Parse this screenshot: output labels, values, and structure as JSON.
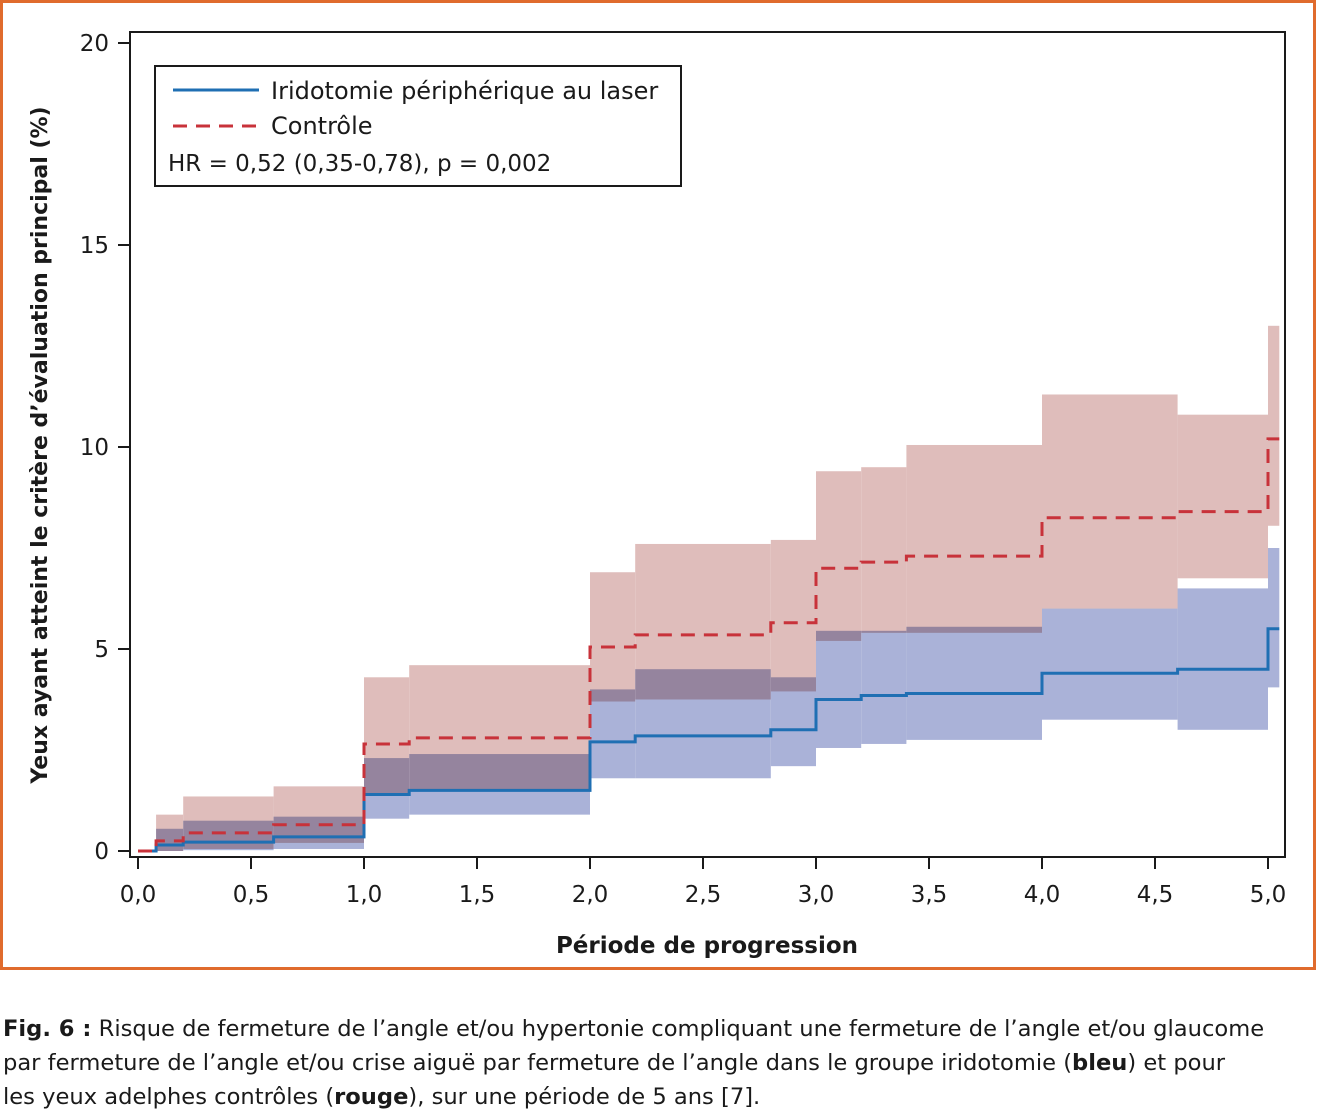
{
  "chart_data": {
    "type": "line",
    "step": true,
    "xlabel": "Période de progression",
    "ylabel": "Yeux ayant atteint le critère d’évaluation principal (%)",
    "xlim": [
      0,
      5.05
    ],
    "ylim": [
      0,
      20
    ],
    "x_ticks": [
      "0,0",
      "0,5",
      "1,0",
      "1,5",
      "2,0",
      "2,5",
      "3,0",
      "3,5",
      "4,0",
      "4,5",
      "5,0"
    ],
    "x_tick_values": [
      0,
      0.5,
      1,
      1.5,
      2,
      2.5,
      3,
      3.5,
      4,
      4.5,
      5
    ],
    "y_ticks": [
      "0",
      "5",
      "10",
      "15",
      "20"
    ],
    "y_tick_values": [
      0,
      5,
      10,
      15,
      20
    ],
    "grid": false,
    "legend_position": "top-left",
    "legend": {
      "series": [
        "Iridotomie périphérique au laser",
        "Contrôle"
      ],
      "annotation": "HR = 0,52 (0,35-0,78), p = 0,002"
    },
    "series": [
      {
        "name": "Iridotomie périphérique au laser",
        "color": "#1f6fb3",
        "line_style": "solid",
        "band_color": "#aab2d8",
        "steps": [
          {
            "x": 0.0,
            "y": 0.0,
            "lo": 0.0,
            "hi": 0.0
          },
          {
            "x": 0.08,
            "y": 0.15,
            "lo": 0.0,
            "hi": 0.55
          },
          {
            "x": 0.2,
            "y": 0.22,
            "lo": 0.02,
            "hi": 0.75
          },
          {
            "x": 0.6,
            "y": 0.35,
            "lo": 0.05,
            "hi": 0.85
          },
          {
            "x": 1.0,
            "y": 1.4,
            "lo": 0.8,
            "hi": 2.3
          },
          {
            "x": 1.2,
            "y": 1.5,
            "lo": 0.9,
            "hi": 2.4
          },
          {
            "x": 2.0,
            "y": 2.7,
            "lo": 1.8,
            "hi": 4.0
          },
          {
            "x": 2.2,
            "y": 2.85,
            "lo": 1.8,
            "hi": 4.5
          },
          {
            "x": 2.8,
            "y": 3.0,
            "lo": 2.1,
            "hi": 4.3
          },
          {
            "x": 3.0,
            "y": 3.75,
            "lo": 2.55,
            "hi": 5.45
          },
          {
            "x": 3.2,
            "y": 3.85,
            "lo": 2.65,
            "hi": 5.45
          },
          {
            "x": 3.4,
            "y": 3.9,
            "lo": 2.75,
            "hi": 5.55
          },
          {
            "x": 4.0,
            "y": 4.4,
            "lo": 3.25,
            "hi": 6.0
          },
          {
            "x": 4.6,
            "y": 4.5,
            "lo": 3.0,
            "hi": 6.5
          },
          {
            "x": 5.0,
            "y": 5.5,
            "lo": 4.05,
            "hi": 7.5
          }
        ]
      },
      {
        "name": "Contrôle",
        "color": "#c8323a",
        "line_style": "dashed",
        "band_color": "#dfbdbb",
        "steps": [
          {
            "x": 0.0,
            "y": 0.0,
            "lo": 0.0,
            "hi": 0.0
          },
          {
            "x": 0.08,
            "y": 0.25,
            "lo": 0.0,
            "hi": 0.9
          },
          {
            "x": 0.2,
            "y": 0.45,
            "lo": 0.05,
            "hi": 1.35
          },
          {
            "x": 0.6,
            "y": 0.65,
            "lo": 0.2,
            "hi": 1.6
          },
          {
            "x": 1.0,
            "y": 2.65,
            "lo": 1.4,
            "hi": 4.3
          },
          {
            "x": 1.2,
            "y": 2.8,
            "lo": 1.5,
            "hi": 4.6
          },
          {
            "x": 2.0,
            "y": 5.05,
            "lo": 3.7,
            "hi": 6.9
          },
          {
            "x": 2.2,
            "y": 5.35,
            "lo": 3.75,
            "hi": 7.6
          },
          {
            "x": 2.8,
            "y": 5.65,
            "lo": 3.95,
            "hi": 7.7
          },
          {
            "x": 3.0,
            "y": 7.0,
            "lo": 5.2,
            "hi": 9.4
          },
          {
            "x": 3.2,
            "y": 7.15,
            "lo": 5.4,
            "hi": 9.5
          },
          {
            "x": 3.4,
            "y": 7.3,
            "lo": 5.4,
            "hi": 10.05
          },
          {
            "x": 4.0,
            "y": 8.25,
            "lo": 6.0,
            "hi": 11.3
          },
          {
            "x": 4.6,
            "y": 8.4,
            "lo": 6.75,
            "hi": 10.8
          },
          {
            "x": 5.0,
            "y": 10.2,
            "lo": 8.05,
            "hi": 13.0
          }
        ]
      }
    ],
    "x_end": 5.05
  },
  "caption": {
    "label": "Fig. 6 :",
    "line1": " Risque de fermeture de l’angle et/ou hypertonie compliquant une fermeture de l’angle et/ou glaucome",
    "line2_a": "par fermeture de l’angle et/ou crise aiguë par fermeture de l’angle dans le groupe iridotomie (",
    "bold1": "bleu",
    "line2_b": ") et pour",
    "line3_a": "les yeux adelphes contrôles (",
    "bold2": "rouge",
    "line3_b": "), sur une période de 5 ans [7]."
  }
}
